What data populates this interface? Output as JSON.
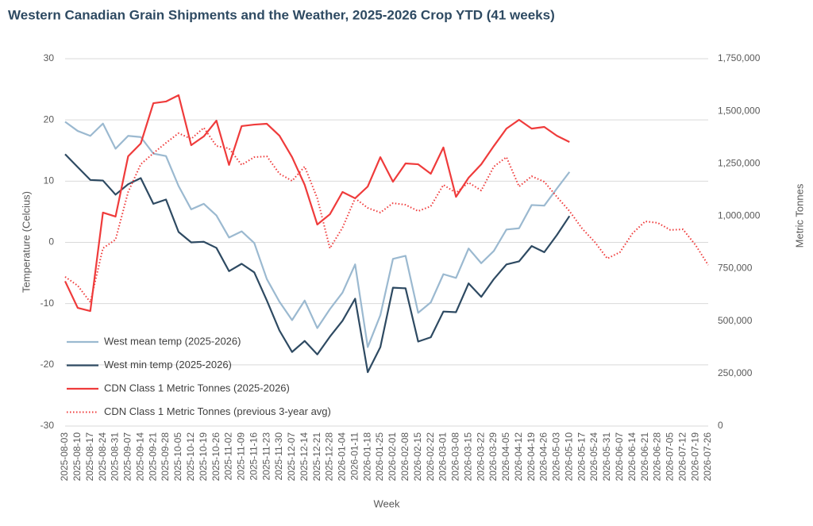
{
  "chart_data": {
    "type": "line",
    "title": "Western Canadian Grain Shipments and the Weather, 2025-2026 Crop YTD (41 weeks)",
    "xlabel": "Week",
    "ylabel": "Temperature (Celcius)",
    "y2label": "Metric Tonnes",
    "categories": [
      "2025-08-03",
      "2025-08-10",
      "2025-08-17",
      "2025-08-24",
      "2025-08-31",
      "2025-09-07",
      "2025-09-14",
      "2025-09-21",
      "2025-09-28",
      "2025-10-05",
      "2025-10-12",
      "2025-10-19",
      "2025-10-26",
      "2025-11-02",
      "2025-11-09",
      "2025-11-16",
      "2025-11-23",
      "2025-11-30",
      "2025-12-07",
      "2025-12-14",
      "2025-12-21",
      "2025-12-28",
      "2026-01-04",
      "2026-01-11",
      "2026-01-18",
      "2026-01-25",
      "2026-02-01",
      "2026-02-08",
      "2026-02-15",
      "2026-02-22",
      "2026-03-01",
      "2026-03-08",
      "2026-03-15",
      "2026-03-22",
      "2026-03-29",
      "2026-04-05",
      "2026-04-12",
      "2026-04-19",
      "2026-04-26",
      "2026-05-03",
      "2026-05-10",
      "2026-05-17",
      "2026-05-24",
      "2026-05-31",
      "2026-06-07",
      "2026-06-14",
      "2026-06-21",
      "2026-06-28",
      "2026-07-05",
      "2026-07-12",
      "2026-07-19",
      "2026-07-26"
    ],
    "series": [
      {
        "name": "West mean temp (2025-2026)",
        "color": "#9bb9d0",
        "axis": "y",
        "dash": false,
        "values": [
          19.7,
          18.2,
          17.4,
          19.4,
          15.3,
          17.4,
          17.2,
          14.5,
          14.1,
          9.2,
          5.4,
          6.3,
          4.4,
          0.8,
          1.8,
          -0.1,
          -6.0,
          -9.7,
          -12.7,
          -9.5,
          -14.0,
          -10.9,
          -8.2,
          -3.6,
          -17.1,
          -11.9,
          -2.7,
          -2.2,
          -11.5,
          -9.8,
          -5.2,
          -5.8,
          -1.0,
          -3.4,
          -1.4,
          2.1,
          2.3,
          6.1,
          6.0,
          8.8,
          11.5,
          null,
          null,
          null,
          null,
          null,
          null,
          null,
          null,
          null,
          null,
          null
        ]
      },
      {
        "name": "West min temp (2025-2026)",
        "color": "#2e4a62",
        "axis": "y",
        "dash": false,
        "values": [
          14.4,
          12.3,
          10.2,
          10.1,
          7.8,
          9.5,
          10.5,
          6.3,
          7.0,
          1.7,
          0.0,
          0.1,
          -0.9,
          -4.7,
          -3.5,
          -4.9,
          -9.5,
          -14.4,
          -17.9,
          -16.1,
          -18.3,
          -15.4,
          -12.8,
          -9.2,
          -21.2,
          -17.1,
          -7.4,
          -7.5,
          -16.2,
          -15.5,
          -11.3,
          -11.4,
          -6.7,
          -8.9,
          -6.0,
          -3.6,
          -3.1,
          -0.6,
          -1.6,
          1.2,
          4.3,
          null,
          null,
          null,
          null,
          null,
          null,
          null,
          null,
          null,
          null,
          null
        ]
      },
      {
        "name": "CDN Class 1 Metric Tonnes (2025-2026)",
        "color": "#ef3b3b",
        "axis": "y2",
        "dash": false,
        "values": [
          690000,
          563000,
          548000,
          1017000,
          998000,
          1285000,
          1346000,
          1538000,
          1546000,
          1576000,
          1338000,
          1380000,
          1455000,
          1244000,
          1429000,
          1436000,
          1440000,
          1383000,
          1281000,
          1149000,
          960000,
          1009000,
          1115000,
          1085000,
          1141000,
          1281000,
          1164000,
          1251000,
          1247000,
          1202000,
          1327000,
          1092000,
          1183000,
          1247000,
          1334000,
          1417000,
          1459000,
          1417000,
          1425000,
          1383000,
          1353000,
          null,
          null,
          null,
          null,
          null,
          null,
          null,
          null,
          null,
          null,
          null
        ]
      },
      {
        "name": "CDN Class 1 Metric Tonnes (previous 3-year avg)",
        "color": "#ef3b3b",
        "axis": "y2",
        "dash": true,
        "values": [
          711000,
          669000,
          590000,
          847000,
          888000,
          1115000,
          1247000,
          1300000,
          1349000,
          1395000,
          1368000,
          1421000,
          1334000,
          1323000,
          1244000,
          1281000,
          1285000,
          1202000,
          1168000,
          1236000,
          1085000,
          847000,
          945000,
          1085000,
          1039000,
          1017000,
          1062000,
          1054000,
          1024000,
          1047000,
          1149000,
          1111000,
          1160000,
          1122000,
          1236000,
          1281000,
          1141000,
          1190000,
          1164000,
          1092000,
          1024000,
          941000,
          877000,
          798000,
          828000,
          918000,
          975000,
          968000,
          934000,
          937000,
          862000,
          767000
        ]
      }
    ],
    "ylim": [
      -30,
      30
    ],
    "yticks": [
      -30,
      -20,
      -10,
      0,
      10,
      20,
      30
    ],
    "y2lim": [
      0,
      1750000
    ],
    "y2ticks": [
      0,
      {
        "value": 250000,
        "label": "250,000"
      },
      {
        "value": 500000,
        "label": "500,000"
      },
      {
        "value": 750000,
        "label": "750,000"
      },
      {
        "value": 1000000,
        "label": "1,000,000"
      },
      {
        "value": 1250000,
        "label": "1,250,000"
      },
      {
        "value": 1500000,
        "label": "1,500,000"
      },
      {
        "value": 1750000,
        "label": "1,750,000"
      }
    ],
    "grid": true,
    "legend": "lower left"
  }
}
